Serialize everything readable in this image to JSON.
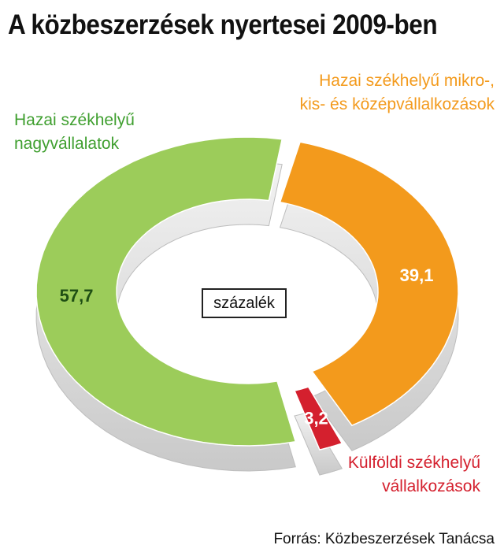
{
  "chart_data": {
    "type": "pie",
    "title": "A közbeszerzések nyertesei 2009-ben",
    "unit": "százalék",
    "source": "Forrás: Közbeszerzések Tanácsa",
    "slices": [
      {
        "label_lines": [
          "Hazai székhelyű mikro-,",
          "kis- és középvállalkozások"
        ],
        "value": 39.1,
        "value_label": "39,1",
        "color": "#f39a1c"
      },
      {
        "label_lines": [
          "Külföldi székhelyű",
          "vállalkozások"
        ],
        "value": 3.2,
        "value_label": "3,2",
        "color": "#d4202e"
      },
      {
        "label_lines": [
          "Hazai székhelyű",
          "nagyvállalatok"
        ],
        "value": 57.7,
        "value_label": "57,7",
        "color": "#9ccc5a"
      }
    ]
  }
}
